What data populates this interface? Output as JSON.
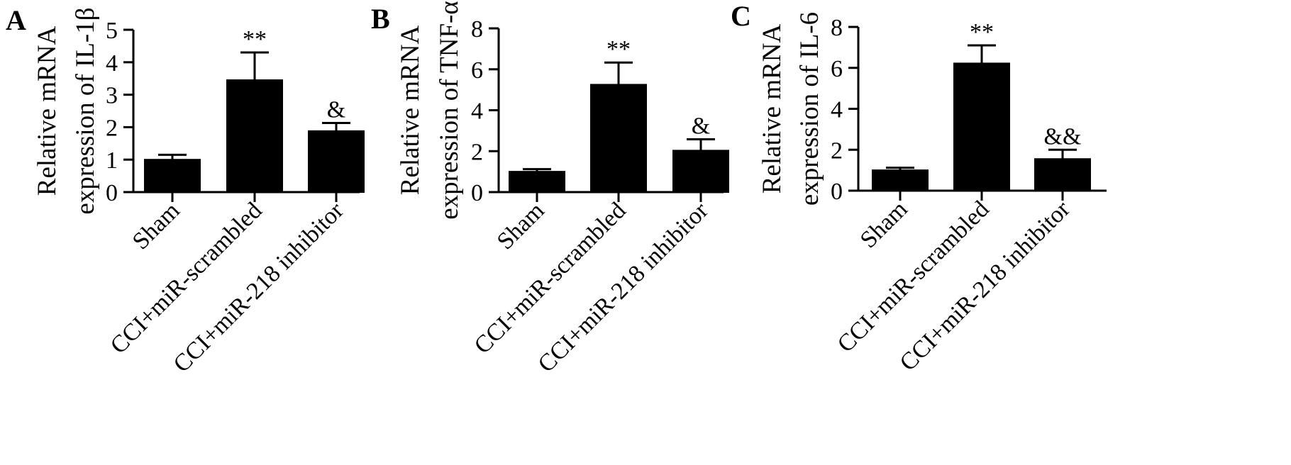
{
  "chart_data": [
    {
      "type": "bar",
      "panel_label": "A",
      "ylabel_lines": [
        "Relative mRNA",
        "expression of IL-1β"
      ],
      "categories": [
        "Sham",
        "CCI+miR-scrambled",
        "CCI+miR-218 inhibitor"
      ],
      "values": [
        1.0,
        3.45,
        1.88
      ],
      "errors": [
        0.15,
        0.85,
        0.25
      ],
      "annotations": [
        "",
        "**",
        "&"
      ],
      "ylim": [
        0,
        5
      ],
      "yticks": [
        "0",
        "1",
        "2",
        "3",
        "4",
        "5"
      ],
      "ytick_values": [
        0,
        1,
        2,
        3,
        4,
        5
      ],
      "bar_color": "#000000"
    },
    {
      "type": "bar",
      "panel_label": "B",
      "ylabel_lines": [
        "Relative mRNA",
        "expression of TNF-α"
      ],
      "categories": [
        "Sham",
        "CCI+miR-scrambled",
        "CCI+miR-218 inhibitor"
      ],
      "values": [
        1.0,
        5.25,
        2.03
      ],
      "errors": [
        0.12,
        1.08,
        0.55
      ],
      "annotations": [
        "",
        "**",
        "&"
      ],
      "ylim": [
        0,
        8
      ],
      "yticks": [
        "0",
        "2",
        "4",
        "6",
        "8"
      ],
      "ytick_values": [
        0,
        2,
        4,
        6,
        8
      ],
      "bar_color": "#000000"
    },
    {
      "type": "bar",
      "panel_label": "C",
      "ylabel_lines": [
        "Relative mRNA",
        "expression of IL-6"
      ],
      "categories": [
        "Sham",
        "CCI+miR-scrambled",
        "CCI+miR-218 inhibitor"
      ],
      "values": [
        1.0,
        6.22,
        1.55
      ],
      "errors": [
        0.12,
        0.88,
        0.45
      ],
      "annotations": [
        "",
        "**",
        "&&"
      ],
      "ylim": [
        0,
        8
      ],
      "yticks": [
        "0",
        "2",
        "4",
        "6",
        "8"
      ],
      "ytick_values": [
        0,
        2,
        4,
        6,
        8
      ],
      "bar_color": "#000000"
    }
  ]
}
